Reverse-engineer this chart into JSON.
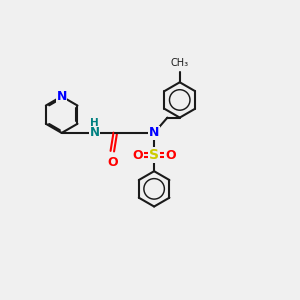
{
  "bg_color": "#f0f0f0",
  "bond_color": "#1a1a1a",
  "n_color": "#0000ff",
  "nh_color": "#008080",
  "o_color": "#ff0000",
  "s_color": "#cccc00",
  "lw": 1.5,
  "fig_w": 3.0,
  "fig_h": 3.0,
  "dpi": 100,
  "xlim": [
    0,
    10
  ],
  "ylim": [
    0,
    10
  ]
}
